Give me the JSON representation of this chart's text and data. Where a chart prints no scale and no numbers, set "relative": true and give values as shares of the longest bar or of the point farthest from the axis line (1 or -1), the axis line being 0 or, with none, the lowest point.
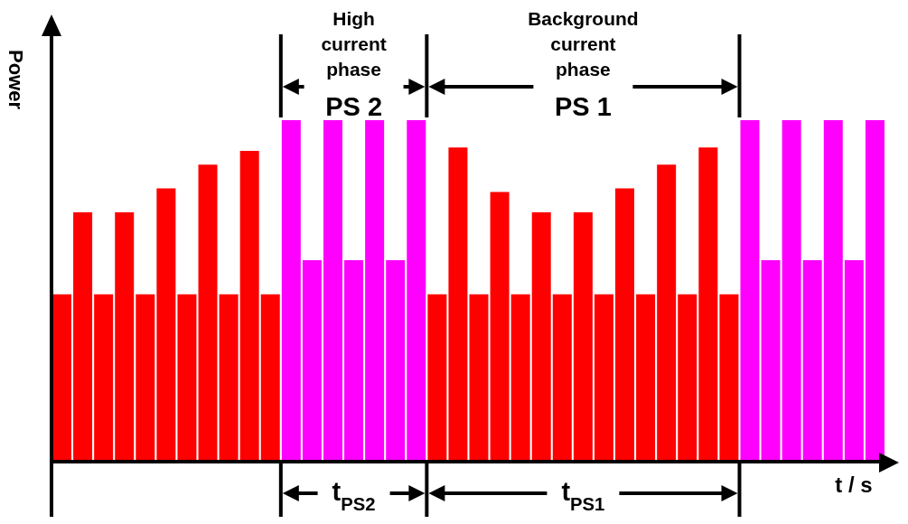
{
  "chart_data": {
    "type": "bar",
    "relative": true,
    "xlabel": "t / s",
    "ylabel": "Power",
    "categories": [
      null,
      null,
      null,
      null,
      null,
      null,
      null,
      null,
      null,
      null,
      null,
      null,
      null,
      null,
      null,
      null,
      null,
      null,
      null,
      null,
      null,
      null,
      null,
      null,
      null,
      null,
      null,
      null,
      null,
      null,
      null,
      null,
      null,
      null,
      null,
      null,
      null,
      null,
      null,
      null
    ],
    "values": [
      0.49,
      0.73,
      0.49,
      0.73,
      0.49,
      0.8,
      0.49,
      0.87,
      0.49,
      0.91,
      0.49,
      1,
      0.59,
      1,
      0.59,
      1,
      0.59,
      1,
      0.49,
      0.92,
      0.49,
      0.79,
      0.49,
      0.73,
      0.49,
      0.73,
      0.49,
      0.8,
      0.49,
      0.87,
      0.49,
      0.92,
      0.49,
      1,
      0.59,
      1,
      0.59,
      1,
      0.59,
      1
    ],
    "colors": [
      "#ff0000",
      "#ff0000",
      "#ff0000",
      "#ff0000",
      "#ff0000",
      "#ff0000",
      "#ff0000",
      "#ff0000",
      "#ff0000",
      "#ff0000",
      "#ff0000",
      "#ff00ff",
      "#ff00ff",
      "#ff00ff",
      "#ff00ff",
      "#ff00ff",
      "#ff00ff",
      "#ff00ff",
      "#ff0000",
      "#ff0000",
      "#ff0000",
      "#ff0000",
      "#ff0000",
      "#ff0000",
      "#ff0000",
      "#ff0000",
      "#ff0000",
      "#ff0000",
      "#ff0000",
      "#ff0000",
      "#ff0000",
      "#ff0000",
      "#ff0000",
      "#ff00ff",
      "#ff00ff",
      "#ff00ff",
      "#ff00ff",
      "#ff00ff",
      "#ff00ff",
      "#ff00ff"
    ],
    "annotations": [
      "High current phase",
      "PS 2",
      "Background current phase",
      "PS 1",
      "t$_{PS2}$",
      "t$_{PS1}$"
    ]
  }
}
